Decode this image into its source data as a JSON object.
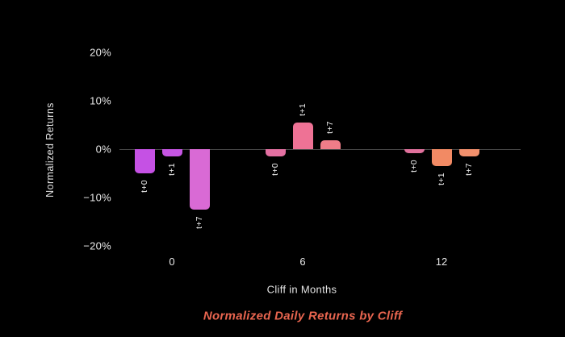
{
  "figure": {
    "background": "#000000",
    "title": {
      "text": "Normalized Daily Returns by Cliff",
      "color": "#e8654f"
    },
    "x_axis": {
      "label": "Cliff in Months"
    },
    "y_axis": {
      "label": "Normalized Returns"
    },
    "zero_line_color": "#494949",
    "text_color": "#e8e8e8"
  },
  "chart_data": {
    "type": "bar",
    "title": "Normalized Daily Returns by Cliff",
    "xlabel": "Cliff in Months",
    "ylabel": "Normalized Returns",
    "unit": "percent",
    "ylim": [
      -20,
      20
    ],
    "y_ticks": [
      {
        "label": "20%",
        "value": 20
      },
      {
        "label": "10%",
        "value": 10
      },
      {
        "label": "0%",
        "value": 0
      },
      {
        "label": "−10%",
        "value": -10
      },
      {
        "label": "−20%",
        "value": -20
      }
    ],
    "grid": false,
    "legend": null,
    "categories": [
      "0",
      "6",
      "12"
    ],
    "series_labels": [
      "t+0",
      "t+1",
      "t+7"
    ],
    "groups": [
      {
        "category": "0",
        "bars": [
          {
            "label": "t+0",
            "value": -5.0,
            "color": "#c551e4"
          },
          {
            "label": "t+1",
            "value": -1.5,
            "color": "#c655e3"
          },
          {
            "label": "t+7",
            "value": -12.5,
            "color": "#d96ad5"
          }
        ]
      },
      {
        "category": "6",
        "bars": [
          {
            "label": "t+0",
            "value": -1.5,
            "color": "#e470a2"
          },
          {
            "label": "t+1",
            "value": 5.5,
            "color": "#ee7295"
          },
          {
            "label": "t+7",
            "value": 1.8,
            "color": "#f07d88"
          }
        ]
      },
      {
        "category": "12",
        "bars": [
          {
            "label": "t+0",
            "value": -0.8,
            "color": "#e0719c"
          },
          {
            "label": "t+1",
            "value": -3.5,
            "color": "#f28a64"
          },
          {
            "label": "t+7",
            "value": -1.5,
            "color": "#f2906c"
          }
        ]
      }
    ]
  }
}
